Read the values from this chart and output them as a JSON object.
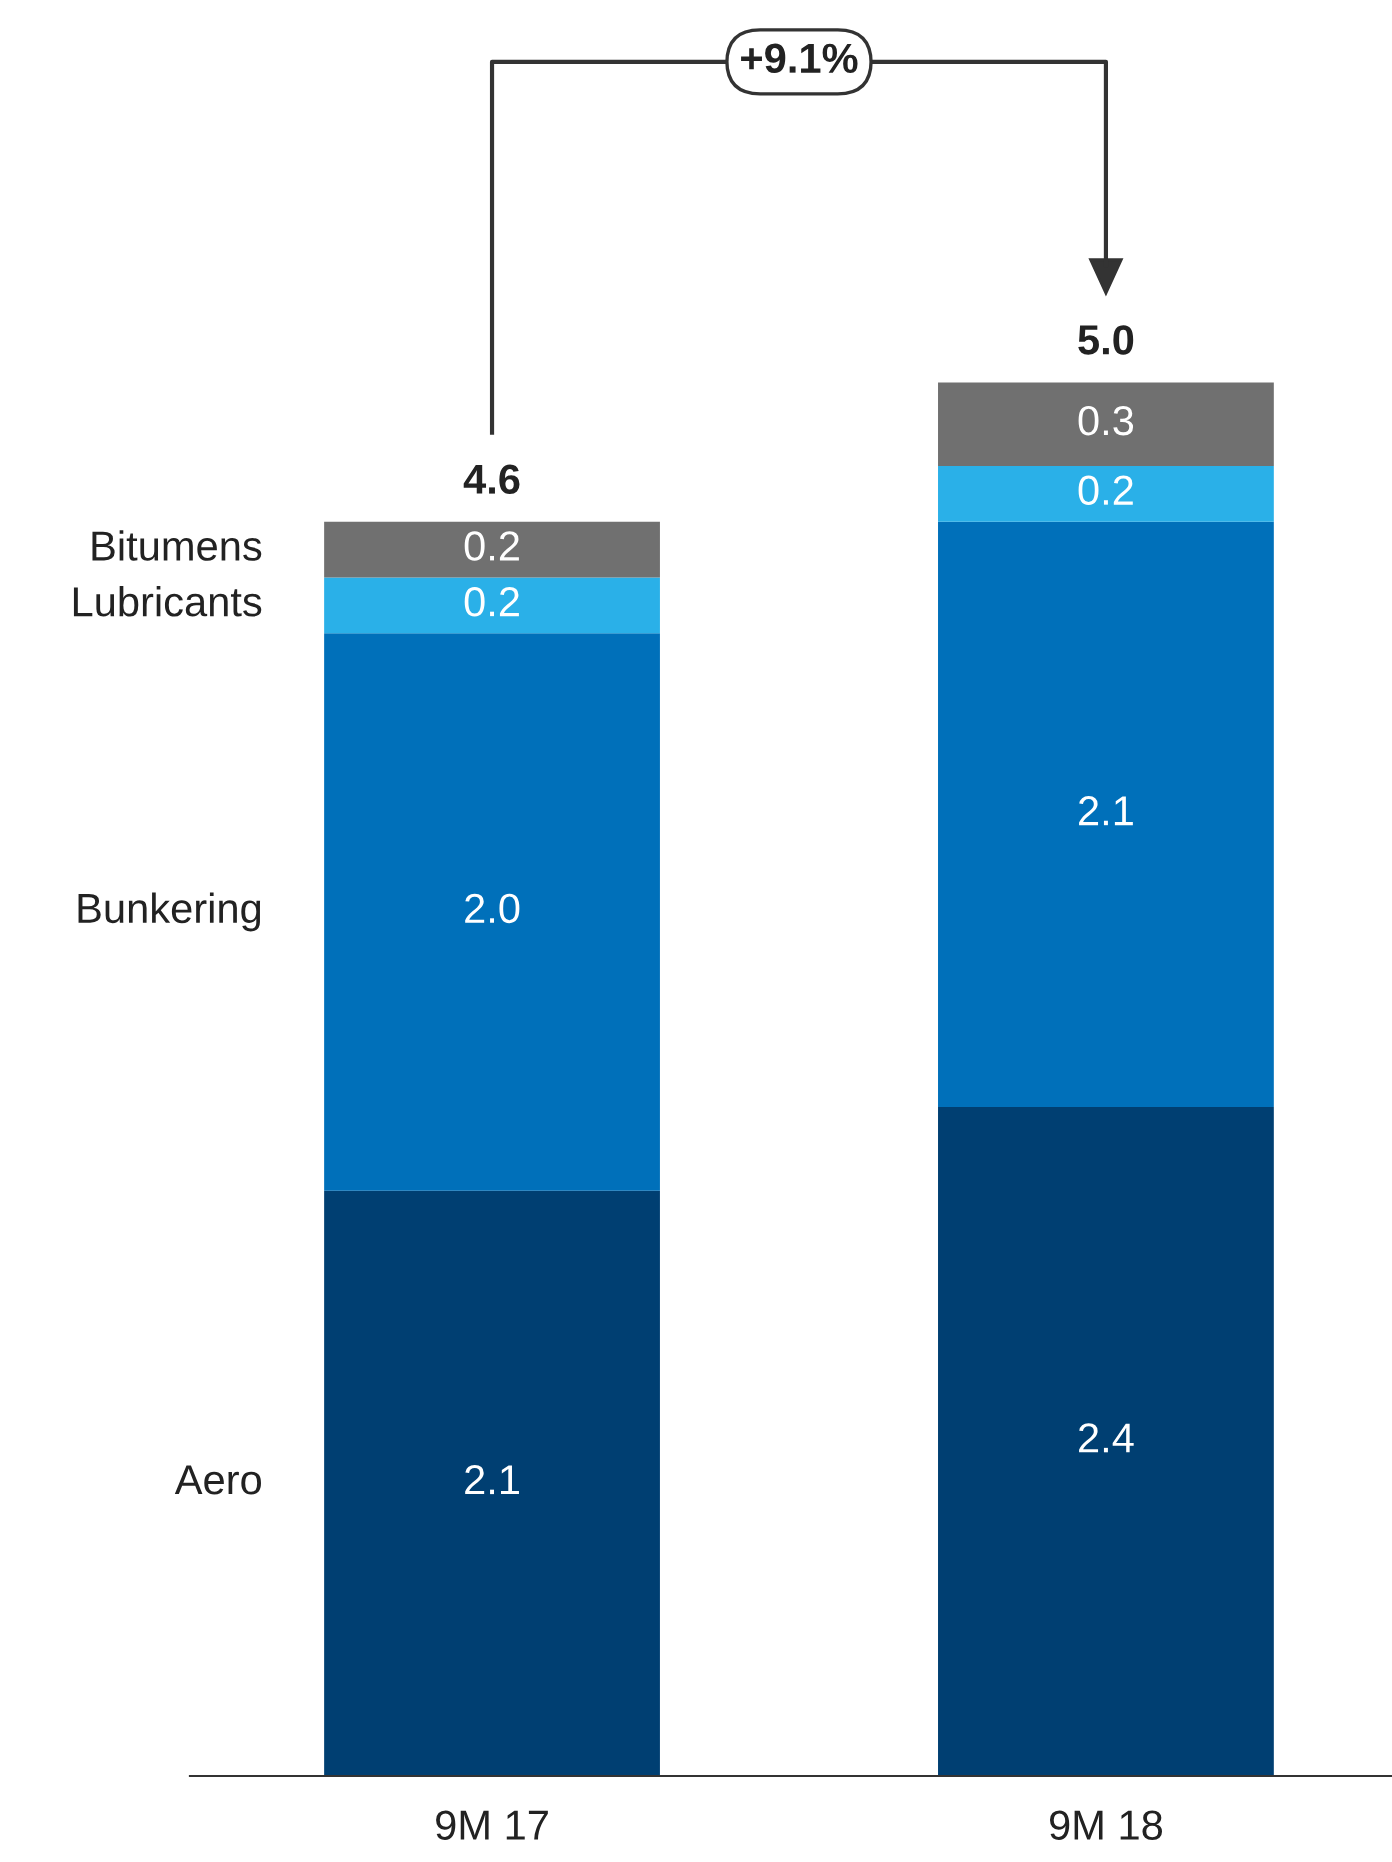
{
  "chart_data": {
    "type": "bar",
    "stacked": true,
    "categories": [
      "9M 17",
      "9M 18"
    ],
    "series": [
      {
        "name": "Aero",
        "color": "#003f72",
        "values": [
          2.1,
          2.4
        ],
        "value_labels": [
          "2.1",
          "2.4"
        ]
      },
      {
        "name": "Bunkering",
        "color": "#0070ba",
        "values": [
          2.0,
          2.1
        ],
        "value_labels": [
          "2.0",
          "2.1"
        ]
      },
      {
        "name": "Lubricants",
        "color": "#2ab0e8",
        "values": [
          0.2,
          0.2
        ],
        "value_labels": [
          "0.2",
          "0.2"
        ]
      },
      {
        "name": "Bitumens",
        "color": "#707070",
        "values": [
          0.2,
          0.3
        ],
        "value_labels": [
          "0.2",
          "0.3"
        ]
      }
    ],
    "totals": [
      "4.6",
      "5.0"
    ],
    "annotations": [
      "+9.1%"
    ],
    "legend": false,
    "grid": false
  }
}
